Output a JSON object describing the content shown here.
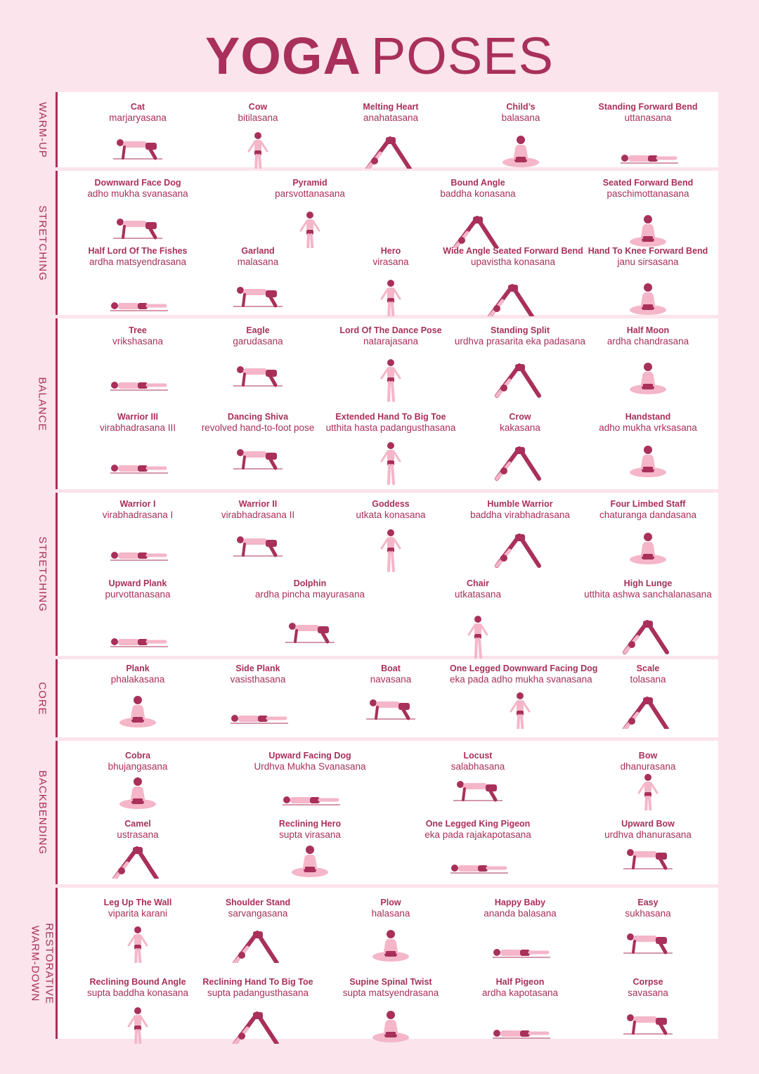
{
  "title": {
    "bold": "YOGA",
    "light": "POSES"
  },
  "colors": {
    "accent": "#a8305a",
    "background": "#fbe4ec",
    "figure_light": "#f4b6c8"
  },
  "sections": [
    {
      "label": "WARM-UP",
      "poses": [
        {
          "en": "Cat",
          "sk": "marjaryasana"
        },
        {
          "en": "Cow",
          "sk": "bitilasana"
        },
        {
          "en": "Melting Heart",
          "sk": "anahatasana"
        },
        {
          "en": "Child’s",
          "sk": "balasana"
        },
        {
          "en": "Standing Forward Bend",
          "sk": "uttanasana"
        }
      ]
    },
    {
      "label": "STRETCHING",
      "poses": [
        {
          "en": "Downward Face Dog",
          "sk": "adho mukha svanasana"
        },
        {
          "en": "Pyramid",
          "sk": "parsvottanasana"
        },
        {
          "en": "Bound Angle",
          "sk": "baddha konasana"
        },
        {
          "en": "Seated Forward Bend",
          "sk": "paschimottanasana"
        },
        {
          "en": "Half Lord Of The Fishes",
          "sk": "ardha matsyendrasana"
        },
        {
          "en": "Garland",
          "sk": "malasana"
        },
        {
          "en": "Hero",
          "sk": "virasana"
        },
        {
          "en": "Wide Angle Seated Forward Bend",
          "sk": "upavistha konasana"
        },
        {
          "en": "Hand To Knee Forward Bend",
          "sk": "janu sirsasana"
        }
      ]
    },
    {
      "label": "BALANCE",
      "poses": [
        {
          "en": "Tree",
          "sk": "vrikshasana"
        },
        {
          "en": "Eagle",
          "sk": "garudasana"
        },
        {
          "en": "Lord Of The Dance Pose",
          "sk": "natarajasana"
        },
        {
          "en": "Standing Split",
          "sk": "urdhva prasarita eka padasana"
        },
        {
          "en": "Half Moon",
          "sk": "ardha chandrasana"
        },
        {
          "en": "Warrior III",
          "sk": "virabhadrasana III"
        },
        {
          "en": "Dancing Shiva",
          "sk": "revolved hand-to-foot pose"
        },
        {
          "en": "Extended Hand To Big Toe",
          "sk": "utthita hasta padangusthasana"
        },
        {
          "en": "Crow",
          "sk": "kakasana"
        },
        {
          "en": "Handstand",
          "sk": "adho mukha vrksasana"
        }
      ]
    },
    {
      "label": "STRETCHING",
      "poses": [
        {
          "en": "Warrior I",
          "sk": "virabhadrasana I"
        },
        {
          "en": "Warrior II",
          "sk": "virabhadrasana II"
        },
        {
          "en": "Goddess",
          "sk": "utkata konasana"
        },
        {
          "en": "Humble Warrior",
          "sk": "baddha virabhadrasana"
        },
        {
          "en": "Four Limbed Staff",
          "sk": "chaturanga dandasana"
        },
        {
          "en": "Upward Plank",
          "sk": "purvottanasana"
        },
        {
          "en": "Dolphin",
          "sk": "ardha pincha mayurasana"
        },
        {
          "en": "Chair",
          "sk": "utkatasana"
        },
        {
          "en": "High Lunge",
          "sk": "utthita ashwa sanchalanasana"
        }
      ]
    },
    {
      "label": "CORE",
      "poses": [
        {
          "en": "Plank",
          "sk": "phalakasana"
        },
        {
          "en": "Side Plank",
          "sk": "vasisthasana"
        },
        {
          "en": "Boat",
          "sk": "navasana"
        },
        {
          "en": "One Legged Downward Facing Dog",
          "sk": "eka pada adho mukha svanasana"
        },
        {
          "en": "Scale",
          "sk": "tolasana"
        }
      ]
    },
    {
      "label": "BACKBENDING",
      "poses": [
        {
          "en": "Cobra",
          "sk": "bhujangasana"
        },
        {
          "en": "Upward Facing Dog",
          "sk": "Urdhva Mukha Svanasana"
        },
        {
          "en": "Locust",
          "sk": "salabhasana"
        },
        {
          "en": "Bow",
          "sk": "dhanurasana"
        },
        {
          "en": "Camel",
          "sk": "ustrasana"
        },
        {
          "en": "Reclining Hero",
          "sk": "supta virasana"
        },
        {
          "en": "One Legged King Pigeon",
          "sk": "eka pada rajakapotasana"
        },
        {
          "en": "Upward Bow",
          "sk": "urdhva dhanurasana"
        }
      ]
    },
    {
      "label": "RESTORATIVE WARM-DOWN",
      "label_lines": [
        "RESTORATIVE",
        "WARM-DOWN"
      ],
      "poses": [
        {
          "en": "Leg Up The Wall",
          "sk": "viparita karani"
        },
        {
          "en": "Shoulder Stand",
          "sk": "sarvangasana"
        },
        {
          "en": "Plow",
          "sk": "halasana"
        },
        {
          "en": "Happy Baby",
          "sk": "ananda balasana"
        },
        {
          "en": "Easy",
          "sk": "sukhasana"
        },
        {
          "en": "Reclining Bound Angle",
          "sk": "supta baddha konasana"
        },
        {
          "en": "Reclining Hand To Big Toe",
          "sk": "supta padangusthasana"
        },
        {
          "en": "Supine Spinal Twist",
          "sk": "supta matsyendrasana"
        },
        {
          "en": "Half Pigeon",
          "sk": "ardha kapotasana"
        },
        {
          "en": "Corpse",
          "sk": "savasana"
        }
      ]
    }
  ]
}
